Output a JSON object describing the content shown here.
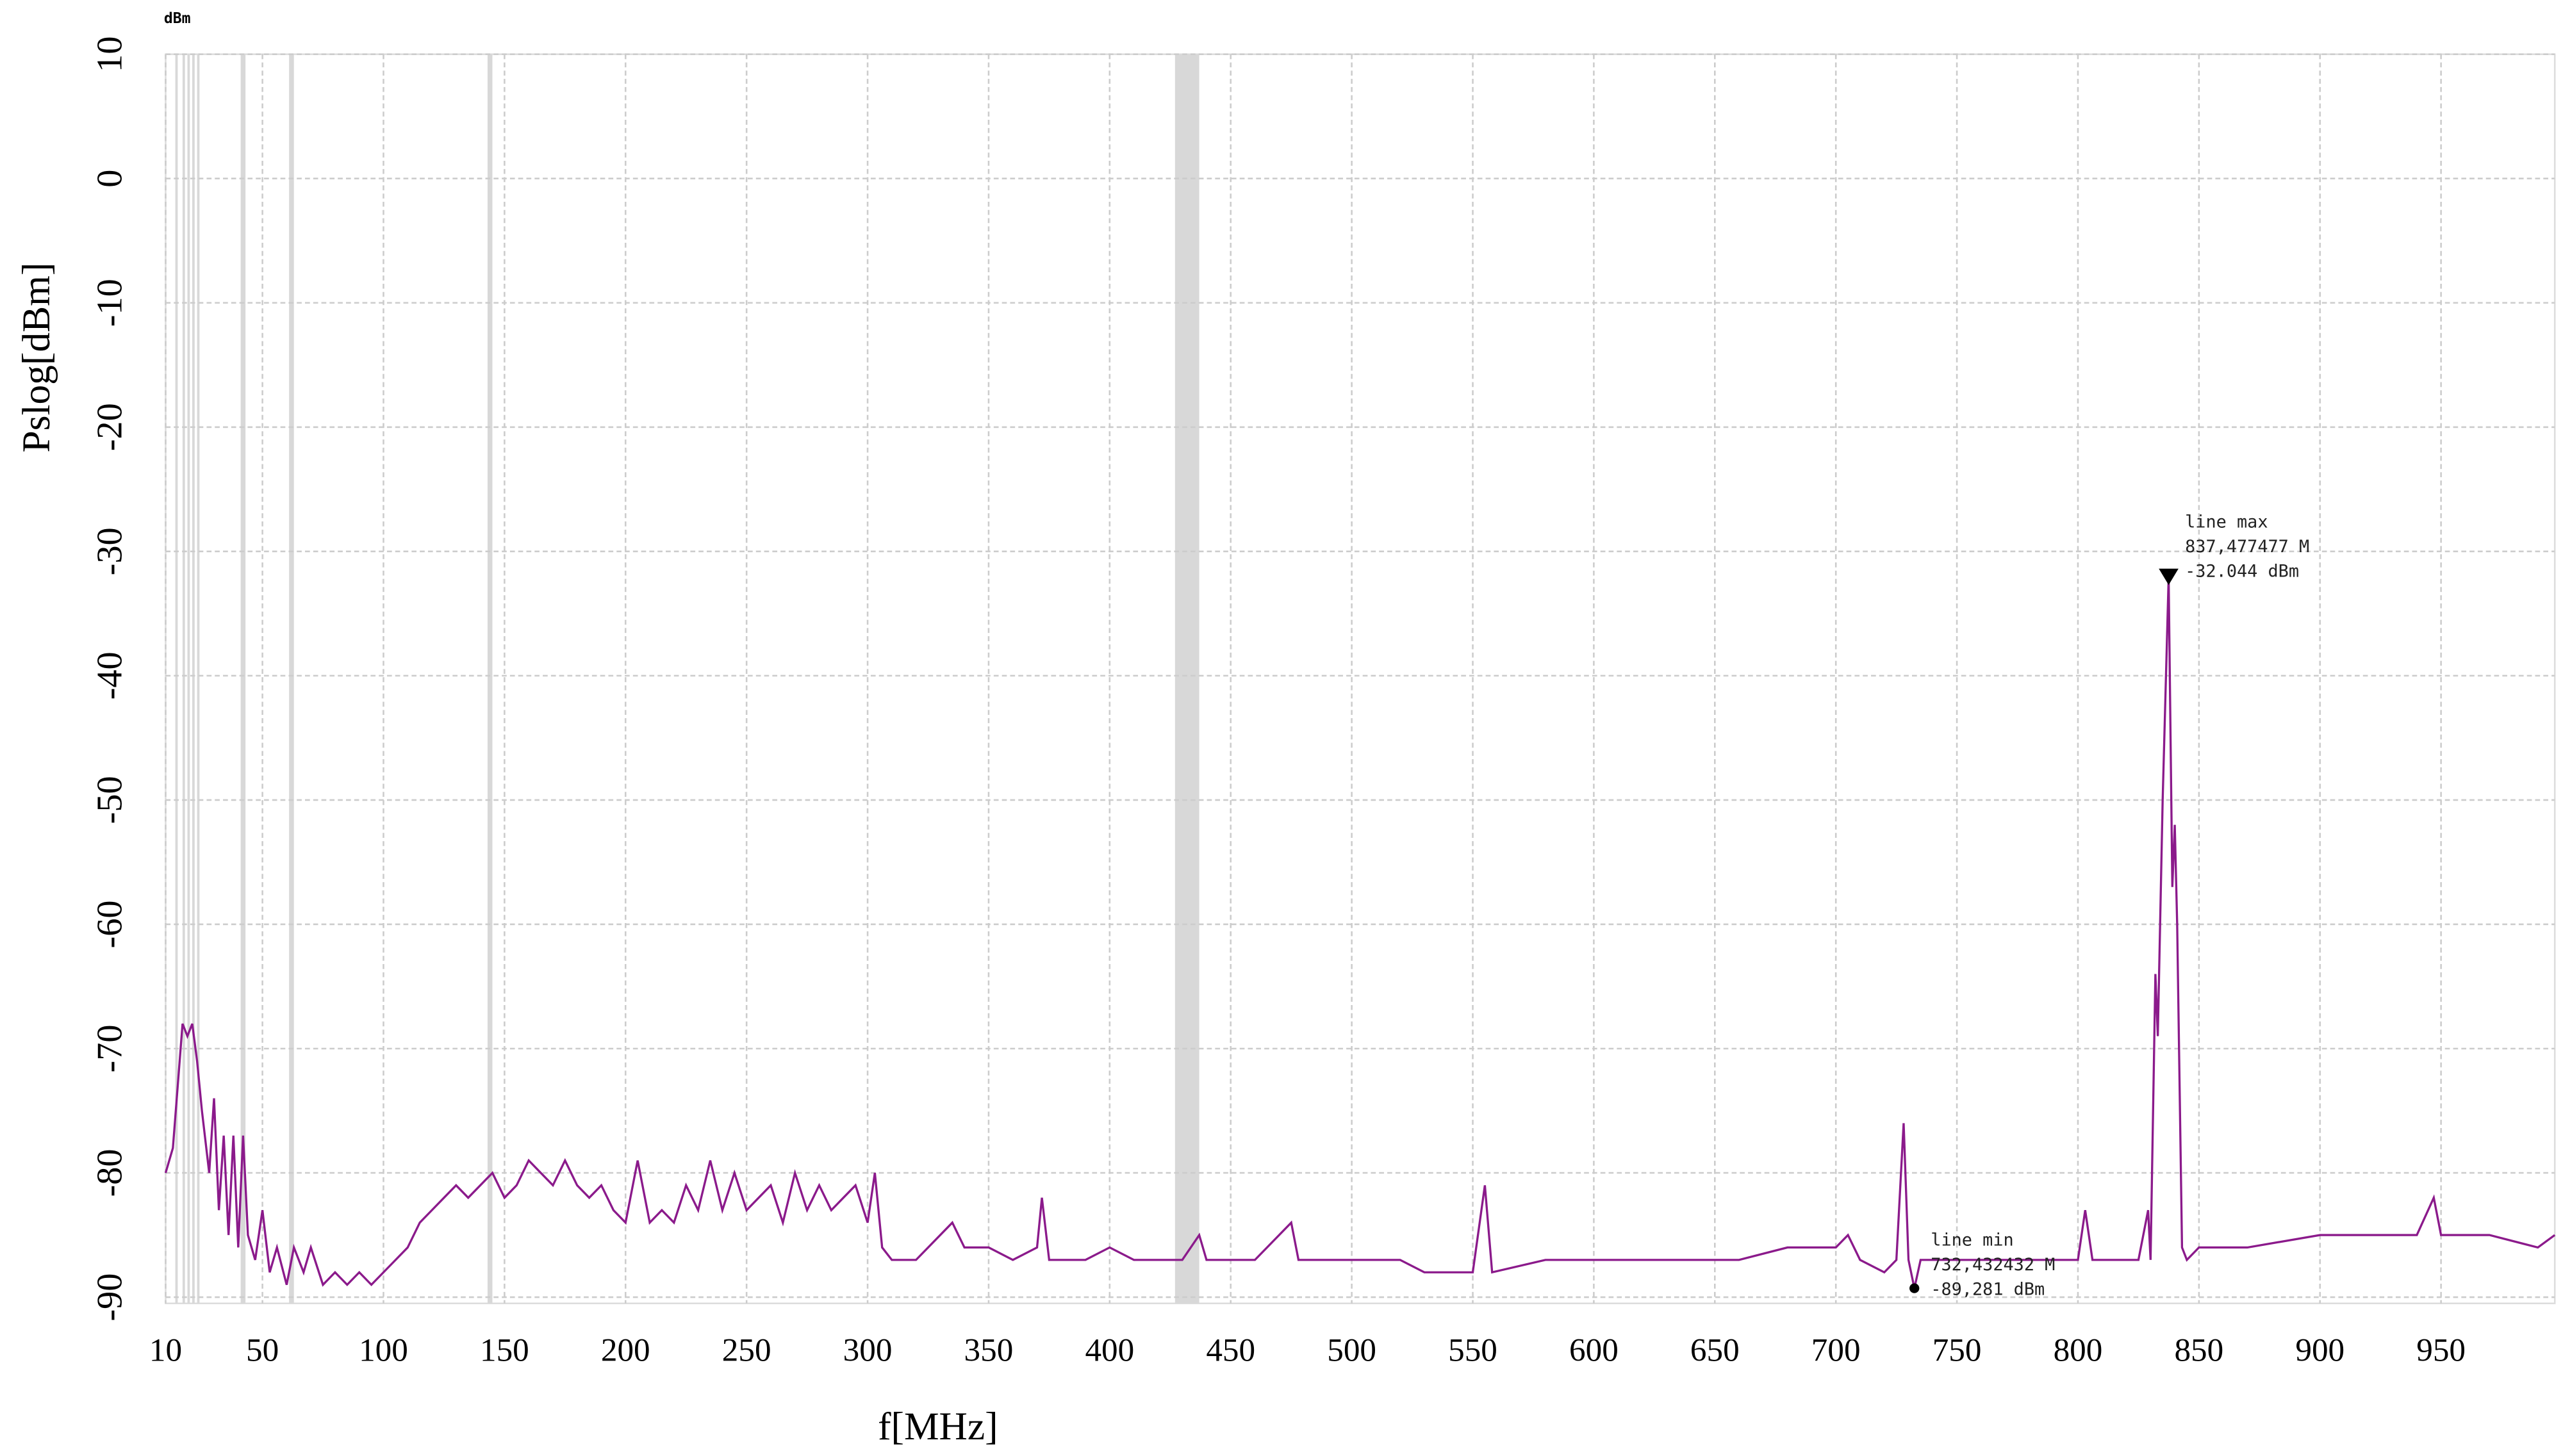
{
  "chart_data": {
    "type": "line",
    "unit_label": "dBm",
    "y_label": "Pslog[dBm]",
    "x_label": "f[MHz]",
    "xlim": [
      10,
      997
    ],
    "ylim": [
      -90.5,
      10
    ],
    "xticks": [
      10,
      50,
      100,
      150,
      200,
      250,
      300,
      350,
      400,
      450,
      500,
      550,
      600,
      650,
      700,
      750,
      800,
      850,
      900,
      950
    ],
    "yticks": [
      10,
      0,
      -10,
      -20,
      -30,
      -40,
      -50,
      -60,
      -70,
      -80,
      -90
    ],
    "grid": true,
    "bands": [
      [
        14,
        15
      ],
      [
        17,
        18
      ],
      [
        19,
        20
      ],
      [
        21,
        22
      ],
      [
        23,
        24
      ],
      [
        41,
        43
      ],
      [
        61,
        63
      ],
      [
        143,
        145
      ],
      [
        427,
        437
      ]
    ],
    "series": [
      {
        "name": "line",
        "color": "#8b1a8b",
        "x": [
          10,
          13,
          15,
          17,
          19,
          21,
          23,
          25,
          28,
          30,
          32,
          34,
          36,
          38,
          40,
          42,
          44,
          47,
          50,
          53,
          56,
          60,
          63,
          67,
          70,
          75,
          80,
          85,
          90,
          95,
          100,
          105,
          110,
          115,
          120,
          125,
          130,
          135,
          140,
          145,
          150,
          155,
          160,
          165,
          170,
          175,
          180,
          185,
          190,
          195,
          200,
          205,
          210,
          215,
          220,
          225,
          230,
          235,
          240,
          245,
          250,
          255,
          260,
          265,
          270,
          275,
          280,
          285,
          290,
          295,
          300,
          303,
          306,
          310,
          320,
          330,
          335,
          340,
          350,
          360,
          370,
          372,
          375,
          390,
          400,
          410,
          420,
          430,
          437,
          440,
          460,
          475,
          478,
          500,
          520,
          530,
          550,
          555,
          558,
          580,
          600,
          620,
          650,
          660,
          680,
          700,
          705,
          710,
          720,
          725,
          728,
          730,
          732.432,
          735,
          750,
          770,
          790,
          800,
          803,
          806,
          825,
          829,
          830,
          832,
          833,
          835,
          837.477,
          839,
          840,
          841,
          843,
          845,
          850,
          870,
          900,
          920,
          940,
          947,
          950,
          970,
          990,
          997
        ],
        "values": [
          -80,
          -78,
          -73,
          -68,
          -69,
          -68,
          -71,
          -75,
          -80,
          -74,
          -83,
          -77,
          -85,
          -77,
          -86,
          -77,
          -85,
          -87,
          -83,
          -88,
          -86,
          -89,
          -86,
          -88,
          -86,
          -89,
          -88,
          -89,
          -88,
          -89,
          -88,
          -87,
          -86,
          -84,
          -83,
          -82,
          -81,
          -82,
          -81,
          -80,
          -82,
          -81,
          -79,
          -80,
          -81,
          -79,
          -81,
          -82,
          -81,
          -83,
          -84,
          -79,
          -84,
          -83,
          -84,
          -81,
          -83,
          -79,
          -83,
          -80,
          -83,
          -82,
          -81,
          -84,
          -80,
          -83,
          -81,
          -83,
          -82,
          -81,
          -84,
          -80,
          -86,
          -87,
          -87,
          -85,
          -84,
          -86,
          -86,
          -87,
          -86,
          -82,
          -87,
          -87,
          -86,
          -87,
          -87,
          -87,
          -85,
          -87,
          -87,
          -84,
          -87,
          -87,
          -87,
          -88,
          -88,
          -81,
          -88,
          -87,
          -87,
          -87,
          -87,
          -87,
          -86,
          -86,
          -85,
          -87,
          -88,
          -87,
          -76,
          -87,
          -89.281,
          -87,
          -87,
          -87,
          -87,
          -87,
          -83,
          -87,
          -87,
          -83,
          -87,
          -64,
          -69,
          -50,
          -32.044,
          -57,
          -52,
          -60,
          -86,
          -87,
          -86,
          -86,
          -85,
          -85,
          -85,
          -82,
          -85,
          -85,
          -86,
          -85
        ]
      }
    ],
    "max_marker": {
      "label": "line max",
      "x": 837.477,
      "y": -32.044,
      "x_text": "837,477477 M",
      "y_text": "-32.044 dBm"
    },
    "min_marker": {
      "label": "line min",
      "x": 732.432,
      "y": -89.281,
      "x_text": "732,432432 M",
      "y_text": "-89,281 dBm"
    }
  }
}
